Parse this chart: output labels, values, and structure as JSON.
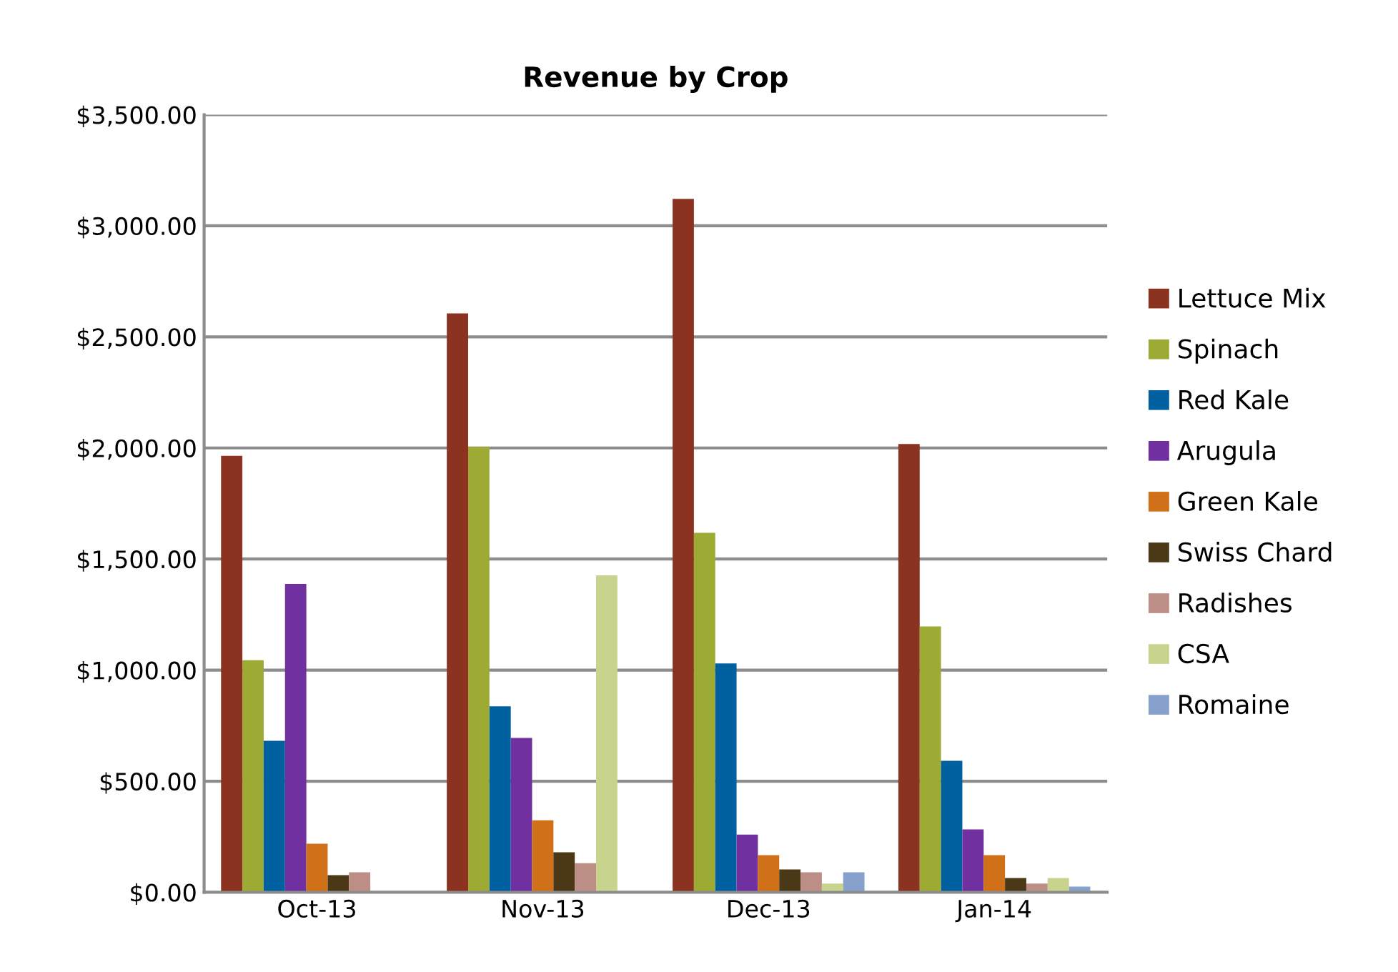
{
  "chart_data": {
    "type": "bar",
    "title": "Revenue by Crop",
    "categories": [
      "Oct-13",
      "Nov-13",
      "Dec-13",
      "Jan-14"
    ],
    "series": [
      {
        "name": "Lettuce Mix",
        "color": "#8b3320",
        "values": [
          1965,
          2606,
          3121,
          2018
        ]
      },
      {
        "name": "Spinach",
        "color": "#9dab34",
        "values": [
          1045,
          2005,
          1618,
          1197
        ]
      },
      {
        "name": "Red Kale",
        "color": "#0060a0",
        "values": [
          682,
          837,
          1030,
          592
        ]
      },
      {
        "name": "Arugula",
        "color": "#7030a0",
        "values": [
          1388,
          695,
          260,
          283
        ]
      },
      {
        "name": "Green Kale",
        "color": "#d07018",
        "values": [
          219,
          324,
          167,
          167
        ]
      },
      {
        "name": "Swiss Chard",
        "color": "#4a3817",
        "values": [
          77,
          180,
          103,
          64
        ]
      },
      {
        "name": "Radishes",
        "color": "#bc8e85",
        "values": [
          90,
          131,
          90,
          39
        ]
      },
      {
        "name": "CSA",
        "color": "#c8d48e",
        "values": [
          null,
          1427,
          39,
          64
        ]
      },
      {
        "name": "Romaine",
        "color": "#86a2cc",
        "values": [
          null,
          null,
          90,
          26
        ]
      }
    ],
    "ylim": [
      0,
      3500
    ],
    "yticks": [
      {
        "value": 0,
        "label": "$0.00"
      },
      {
        "value": 500,
        "label": "$500.00"
      },
      {
        "value": 1000,
        "label": "$1,000.00"
      },
      {
        "value": 1500,
        "label": "$1,500.00"
      },
      {
        "value": 2000,
        "label": "$2,000.00"
      },
      {
        "value": 2500,
        "label": "$2,500.00"
      },
      {
        "value": 3000,
        "label": "$3,000.00"
      },
      {
        "value": 3500,
        "label": "$3,500.00"
      }
    ],
    "grid": "y",
    "legend": "right"
  }
}
